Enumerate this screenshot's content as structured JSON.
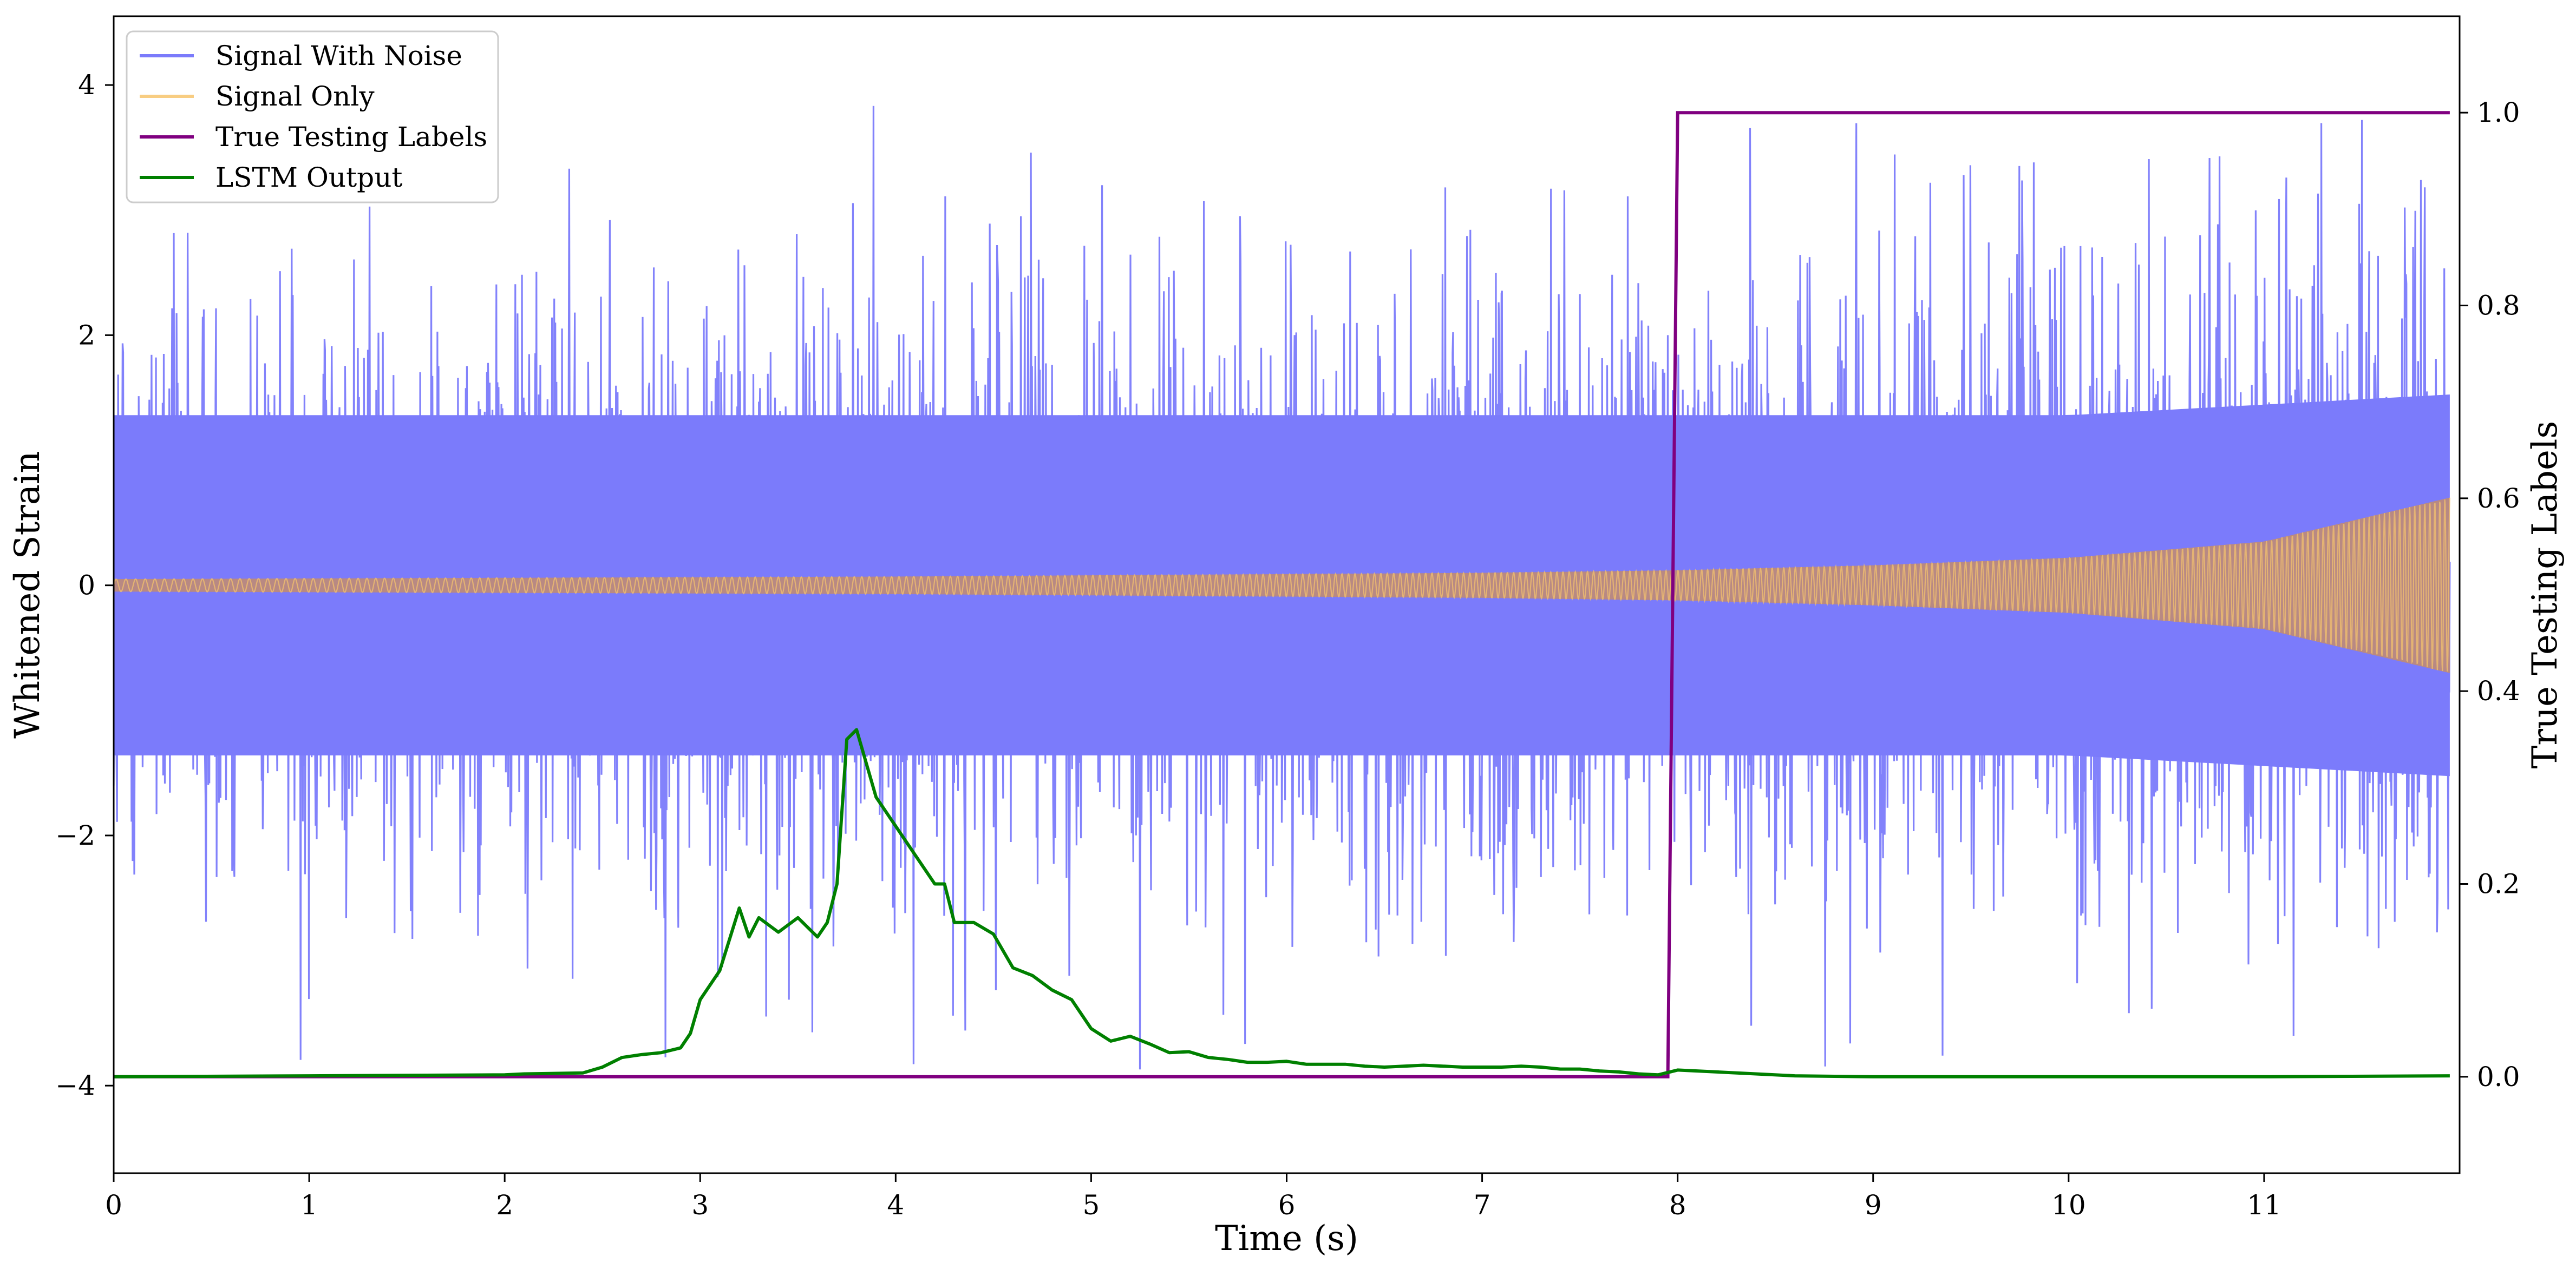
{
  "chart_data": {
    "type": "line",
    "xlabel": "Time (s)",
    "ylabel": "Whitened Strain",
    "y2label": "True Testing Labels",
    "xlim": [
      0,
      12
    ],
    "ylim": [
      -4.7,
      4.55
    ],
    "y2lim": [
      -0.1,
      1.1
    ],
    "x_ticks": [
      0,
      1,
      2,
      3,
      4,
      5,
      6,
      7,
      8,
      9,
      10,
      11
    ],
    "x_tick_labels": [
      "0",
      "1",
      "2",
      "3",
      "4",
      "5",
      "6",
      "7",
      "8",
      "9",
      "10",
      "11"
    ],
    "y_ticks": [
      -4,
      -2,
      0,
      2,
      4
    ],
    "y_tick_labels": [
      "−4",
      "−2",
      "0",
      "2",
      "4"
    ],
    "y2_ticks": [
      0.0,
      0.2,
      0.4,
      0.6,
      0.8,
      1.0
    ],
    "y2_tick_labels": [
      "0.0",
      "0.2",
      "0.4",
      "0.6",
      "0.8",
      "1.0"
    ],
    "grid": false,
    "legend_position": "top-left",
    "legend": [
      "Signal With Noise",
      "Signal Only",
      "True Testing Labels",
      "LSTM Output"
    ],
    "series": [
      {
        "name": "Signal With Noise",
        "axis": "left",
        "color": "#7b7bfb",
        "description_envelope": {
          "x": [
            0,
            1,
            2,
            3,
            4,
            5,
            6,
            7,
            8,
            9,
            10,
            11,
            12
          ],
          "typical_low": [
            -1.6,
            -1.6,
            -1.6,
            -1.6,
            -1.6,
            -1.6,
            -1.6,
            -1.6,
            -1.6,
            -1.6,
            -1.6,
            -1.7,
            -1.8
          ],
          "typical_high": [
            1.6,
            1.6,
            1.6,
            1.6,
            1.6,
            1.6,
            1.6,
            1.6,
            1.6,
            1.6,
            1.6,
            1.7,
            1.8
          ],
          "min": -4.28,
          "max": 4.13
        }
      },
      {
        "name": "Signal Only",
        "axis": "left",
        "color": "#f7c46c",
        "amplitude_envelope": {
          "x": [
            0,
            1,
            2,
            3,
            4,
            5,
            6,
            7,
            8,
            9,
            10,
            11,
            12
          ],
          "amplitude": [
            0.05,
            0.055,
            0.06,
            0.065,
            0.07,
            0.08,
            0.09,
            0.1,
            0.12,
            0.16,
            0.22,
            0.35,
            0.72
          ]
        }
      },
      {
        "name": "True Testing Labels",
        "axis": "right",
        "color": "#800080",
        "x": [
          0,
          7.95,
          8.0,
          11.95
        ],
        "y": [
          0.0,
          0.0,
          1.0,
          1.0
        ]
      },
      {
        "name": "LSTM Output",
        "axis": "right",
        "color": "#008000",
        "x": [
          0,
          1,
          2,
          2.1,
          2.4,
          2.5,
          2.6,
          2.7,
          2.8,
          2.9,
          2.95,
          3.0,
          3.1,
          3.2,
          3.25,
          3.3,
          3.4,
          3.5,
          3.6,
          3.65,
          3.7,
          3.75,
          3.8,
          3.9,
          4.0,
          4.1,
          4.2,
          4.25,
          4.3,
          4.4,
          4.5,
          4.6,
          4.7,
          4.8,
          4.9,
          5.0,
          5.1,
          5.2,
          5.3,
          5.4,
          5.5,
          5.6,
          5.7,
          5.8,
          5.9,
          6.0,
          6.1,
          6.2,
          6.3,
          6.4,
          6.5,
          6.6,
          6.7,
          6.8,
          6.9,
          7.0,
          7.1,
          7.2,
          7.3,
          7.4,
          7.5,
          7.6,
          7.7,
          7.8,
          7.9,
          8.0,
          8.1,
          8.2,
          8.4,
          8.6,
          9.0,
          10.0,
          11.0,
          11.95
        ],
        "y": [
          0.0,
          0.001,
          0.002,
          0.003,
          0.004,
          0.01,
          0.02,
          0.023,
          0.025,
          0.03,
          0.045,
          0.08,
          0.11,
          0.175,
          0.145,
          0.165,
          0.15,
          0.165,
          0.145,
          0.16,
          0.2,
          0.35,
          0.36,
          0.29,
          0.26,
          0.23,
          0.2,
          0.2,
          0.16,
          0.16,
          0.148,
          0.113,
          0.105,
          0.09,
          0.08,
          0.05,
          0.037,
          0.042,
          0.034,
          0.025,
          0.026,
          0.02,
          0.018,
          0.015,
          0.015,
          0.016,
          0.013,
          0.013,
          0.013,
          0.011,
          0.01,
          0.011,
          0.012,
          0.011,
          0.01,
          0.01,
          0.01,
          0.011,
          0.01,
          0.008,
          0.008,
          0.006,
          0.005,
          0.003,
          0.002,
          0.007,
          0.006,
          0.005,
          0.003,
          0.001,
          0.0,
          0.0,
          0.0,
          0.001
        ]
      }
    ]
  }
}
